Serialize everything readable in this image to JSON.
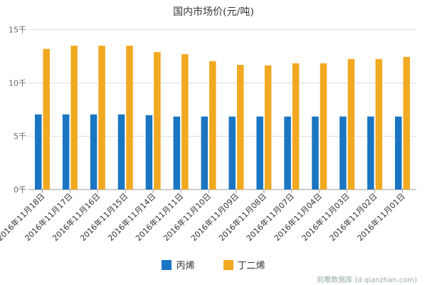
{
  "chart_data": {
    "type": "bar",
    "title": "国内市场价(元/吨)",
    "categories": [
      "2016年11月18日",
      "2016年11月17日",
      "2016年11月16日",
      "2016年11月15日",
      "2016年11月14日",
      "2016年11月11日",
      "2016年11月10日",
      "2016年11月09日",
      "2016年11月08日",
      "2016年11月07日",
      "2016年11月04日",
      "2016年11月03日",
      "2016年11月02日",
      "2016年11月01日"
    ],
    "series": [
      {
        "name": "丙烯",
        "color": "#1a75c2",
        "values": [
          7050,
          7050,
          7050,
          7050,
          6980,
          6850,
          6850,
          6850,
          6850,
          6850,
          6850,
          6850,
          6850,
          6850
        ]
      },
      {
        "name": "丁二烯",
        "color": "#f0a920",
        "values": [
          13200,
          13500,
          13500,
          13500,
          12900,
          12700,
          12050,
          11700,
          11650,
          11850,
          11850,
          12250,
          12250,
          12450
        ]
      }
    ],
    "ylim": [
      0,
      15000
    ],
    "yticks": [
      {
        "value": 0,
        "label": "0千"
      },
      {
        "value": 5000,
        "label": "5千"
      },
      {
        "value": 10000,
        "label": "10千"
      },
      {
        "value": 15000,
        "label": "15千"
      }
    ],
    "grid": true,
    "legend_position": "bottom"
  },
  "watermark": "前瞻数据库 (d.qianzhan.com)"
}
